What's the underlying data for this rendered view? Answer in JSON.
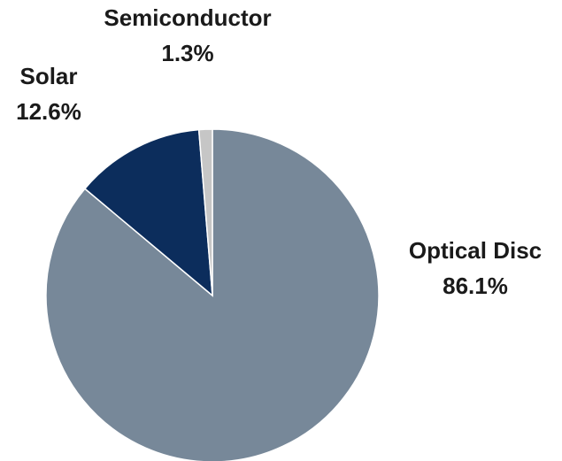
{
  "chart_data": {
    "type": "pie",
    "categories": [
      "Optical Disc",
      "Solar",
      "Semiconductor"
    ],
    "values": [
      86.1,
      12.6,
      1.3
    ],
    "value_labels": [
      "86.1%",
      "12.6%",
      "1.3%"
    ],
    "colors": [
      "#778899",
      "#0c2d5c",
      "#c6c6c6"
    ]
  }
}
